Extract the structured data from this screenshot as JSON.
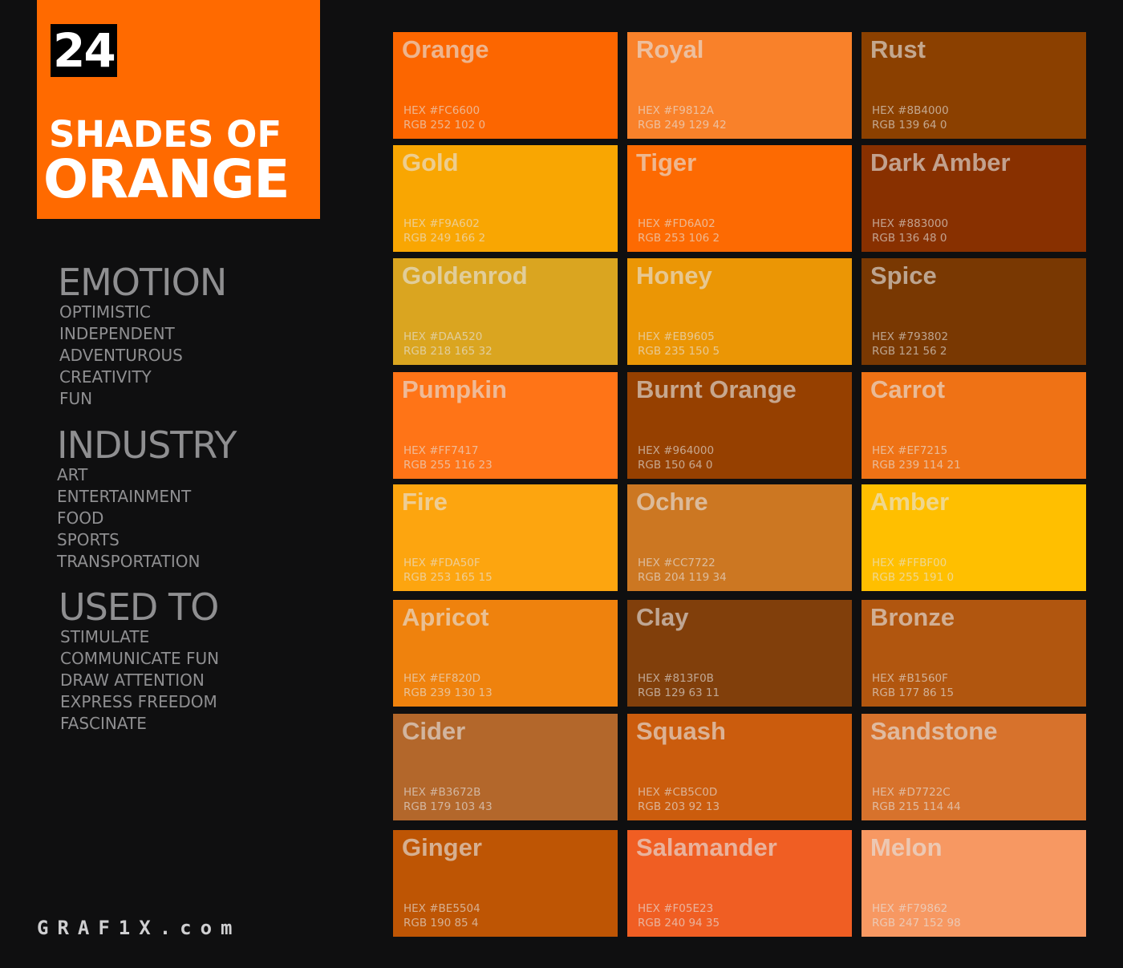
{
  "hero": {
    "count": "24",
    "line1": "SHADES OF",
    "line2": "ORANGE",
    "background": "#FF6A00"
  },
  "sections": [
    {
      "heading": "EMOTION",
      "items": [
        "OPTIMISTIC",
        "INDEPENDENT",
        "ADVENTUROUS",
        "CREATIVITY",
        "FUN"
      ]
    },
    {
      "heading": "INDUSTRY",
      "items": [
        "ART",
        "ENTERTAINMENT",
        "FOOD",
        "SPORTS",
        "TRANSPORTATION"
      ]
    },
    {
      "heading": "USED TO",
      "items": [
        "STIMULATE",
        "COMMUNICATE FUN",
        "DRAW ATTENTION",
        "EXPRESS FREEDOM",
        "FASCINATE"
      ]
    }
  ],
  "brand": "GRAF1X.com",
  "swatches": [
    {
      "name": "Orange",
      "hex": "HEX #FC6600",
      "rgb": "RGB 252 102 0",
      "color": "#FC6600"
    },
    {
      "name": "Royal",
      "hex": "HEX #F9812A",
      "rgb": "RGB 249 129 42",
      "color": "#F9812A"
    },
    {
      "name": "Rust",
      "hex": "HEX #8B4000",
      "rgb": "RGB 139 64 0",
      "color": "#8B4000"
    },
    {
      "name": "Gold",
      "hex": "HEX #F9A602",
      "rgb": "RGB 249 166 2",
      "color": "#F9A602"
    },
    {
      "name": "Tiger",
      "hex": "HEX #FD6A02",
      "rgb": "RGB 253 106 2",
      "color": "#FD6A02"
    },
    {
      "name": "Dark Amber",
      "hex": "HEX #883000",
      "rgb": "RGB 136 48 0",
      "color": "#883000"
    },
    {
      "name": "Goldenrod",
      "hex": "HEX #DAA520",
      "rgb": "RGB 218 165 32",
      "color": "#DAA520"
    },
    {
      "name": "Honey",
      "hex": "HEX  #EB9605",
      "rgb": "RGB 235 150 5",
      "color": "#EB9605"
    },
    {
      "name": "Spice",
      "hex": "HEX #793802",
      "rgb": "RGB 121 56 2",
      "color": "#793802"
    },
    {
      "name": "Pumpkin",
      "hex": "HEX #FF7417",
      "rgb": "RGB 255 116 23",
      "color": "#FF7417"
    },
    {
      "name": "Burnt Orange",
      "hex": "HEX #964000",
      "rgb": "RGB 150 64 0",
      "color": "#964000"
    },
    {
      "name": "Carrot",
      "hex": "HEX #EF7215",
      "rgb": "RGB 239 114 21",
      "color": "#EF7215"
    },
    {
      "name": "Fire",
      "hex": "HEX #FDA50F",
      "rgb": "RGB 253 165 15",
      "color": "#FDA50F"
    },
    {
      "name": "Ochre",
      "hex": "HEX #CC7722",
      "rgb": "RGB 204 119 34",
      "color": "#CC7722"
    },
    {
      "name": "Amber",
      "hex": "HEX #FFBF00",
      "rgb": "RGB 255 191 0",
      "color": "#FFBF00"
    },
    {
      "name": "Apricot",
      "hex": "HEX #EF820D",
      "rgb": "RGB 239 130 13",
      "color": "#EF820D"
    },
    {
      "name": "Clay",
      "hex": "HEX #813F0B",
      "rgb": "RGB 129 63 11",
      "color": "#813F0B"
    },
    {
      "name": "Bronze",
      "hex": "HEX #B1560F",
      "rgb": "RGB 177 86 15",
      "color": "#B1560F"
    },
    {
      "name": "Cider",
      "hex": "HEX #B3672B",
      "rgb": "RGB 179 103 43",
      "color": "#B3672B"
    },
    {
      "name": "Squash",
      "hex": "HEX #CB5C0D",
      "rgb": "RGB 203 92 13",
      "color": "#CB5C0D"
    },
    {
      "name": "Sandstone",
      "hex": "HEX #D7722C",
      "rgb": "RGB 215 114 44",
      "color": "#D7722C"
    },
    {
      "name": "Ginger",
      "hex": "HEX #BE5504",
      "rgb": "RGB 190 85 4",
      "color": "#BE5504"
    },
    {
      "name": "Salamander",
      "hex": "HEX #F05E23",
      "rgb": "RGB 240 94 35",
      "color": "#F05E23"
    },
    {
      "name": "Melon",
      "hex": "HEX #F79862",
      "rgb": "RGB 247 152 98",
      "color": "#F79862"
    }
  ]
}
